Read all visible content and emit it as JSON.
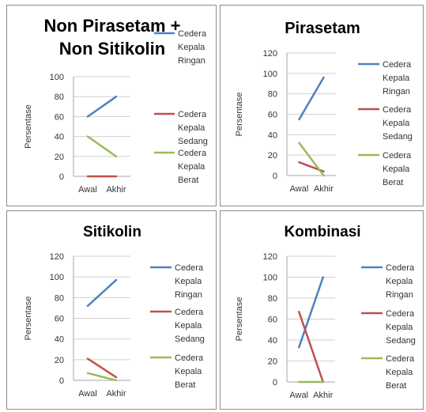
{
  "chart_data": [
    {
      "type": "line",
      "title_lines": [
        "Non Pirasetam +",
        "Non Sitikolin"
      ],
      "ylabel": "Persentase",
      "categories": [
        "Awal",
        "Akhir"
      ],
      "ylim": [
        0,
        100
      ],
      "yticks": [
        0,
        20,
        40,
        60,
        80,
        100
      ],
      "series": [
        {
          "name_lines": [
            "Cedera",
            "Kepala",
            "Ringan"
          ],
          "color": "#4f81bd",
          "values": [
            60,
            80
          ]
        },
        {
          "name_lines": [
            "Cedera",
            "Kepala",
            "Sedang"
          ],
          "color": "#c0504d",
          "values": [
            0,
            0
          ]
        },
        {
          "name_lines": [
            "Cedera",
            "Kepala",
            "Berat"
          ],
          "color": "#9bbb59",
          "values": [
            40,
            20
          ]
        }
      ]
    },
    {
      "type": "line",
      "title_lines": [
        "Pirasetam"
      ],
      "ylabel": "Persentase",
      "categories": [
        "Awal",
        "Akhir"
      ],
      "ylim": [
        0,
        120
      ],
      "yticks": [
        0,
        20,
        40,
        60,
        80,
        100,
        120
      ],
      "series": [
        {
          "name_lines": [
            "Cedera",
            "Kepala",
            "Ringan"
          ],
          "color": "#4f81bd",
          "values": [
            55,
            96
          ]
        },
        {
          "name_lines": [
            "Cedera",
            "Kepala",
            "Sedang"
          ],
          "color": "#c0504d",
          "values": [
            13,
            4
          ]
        },
        {
          "name_lines": [
            "Cedera",
            "Kepala",
            "Berat"
          ],
          "color": "#9bbb59",
          "values": [
            32,
            0
          ]
        }
      ]
    },
    {
      "type": "line",
      "title_lines": [
        "Sitikolin"
      ],
      "ylabel": "Persentase",
      "categories": [
        "Awal",
        "Akhir"
      ],
      "ylim": [
        0,
        120
      ],
      "yticks": [
        0,
        20,
        40,
        60,
        80,
        100,
        120
      ],
      "series": [
        {
          "name_lines": [
            "Cedera",
            "Kepala",
            "Ringan"
          ],
          "color": "#4f81bd",
          "values": [
            72,
            97
          ]
        },
        {
          "name_lines": [
            "Cedera",
            "Kepala",
            "Sedang"
          ],
          "color": "#c0504d",
          "values": [
            21,
            3
          ]
        },
        {
          "name_lines": [
            "Cedera",
            "Kepala",
            "Berat"
          ],
          "color": "#9bbb59",
          "values": [
            7,
            0
          ]
        }
      ]
    },
    {
      "type": "line",
      "title_lines": [
        "Kombinasi"
      ],
      "ylabel": "Persentase",
      "categories": [
        "Awal",
        "Akhir"
      ],
      "ylim": [
        0,
        120
      ],
      "yticks": [
        0,
        20,
        40,
        60,
        80,
        100,
        120
      ],
      "series": [
        {
          "name_lines": [
            "Cedera",
            "Kepala",
            "Ringan"
          ],
          "color": "#4f81bd",
          "values": [
            33,
            100
          ]
        },
        {
          "name_lines": [
            "Cedera",
            "Kepala",
            "Sedang"
          ],
          "color": "#c0504d",
          "values": [
            67,
            0
          ]
        },
        {
          "name_lines": [
            "Cedera",
            "Kepala",
            "Berat"
          ],
          "color": "#9bbb59",
          "values": [
            0,
            0
          ]
        }
      ]
    }
  ]
}
